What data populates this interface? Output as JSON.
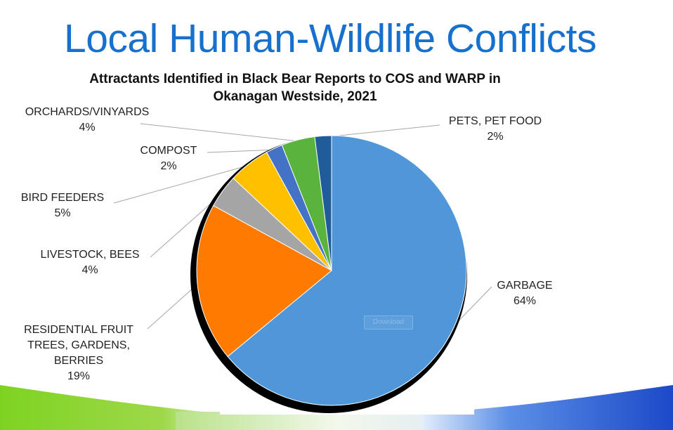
{
  "slide": {
    "title": "Local Human-Wildlife Conflicts"
  },
  "download_label": "Download",
  "chart_data": {
    "type": "pie",
    "title": "Attractants Identified in Black Bear Reports to COS and WARP in Okanagan Westside, 2021",
    "slices": [
      {
        "label": "GARBAGE",
        "value": 64,
        "pct_label": "64%",
        "color": "#4f97d9"
      },
      {
        "label": "RESIDENTIAL FRUIT TREES, GARDENS, BERRIES",
        "value": 19,
        "pct_label": "19%",
        "color": "#ff7a00"
      },
      {
        "label": "LIVESTOCK, BEES",
        "value": 4,
        "pct_label": "4%",
        "color": "#a5a5a5"
      },
      {
        "label": "BIRD FEEDERS",
        "value": 5,
        "pct_label": "5%",
        "color": "#ffc000"
      },
      {
        "label": "COMPOST",
        "value": 2,
        "pct_label": "2%",
        "color": "#4472c4"
      },
      {
        "label": "ORCHARDS/VINYARDS",
        "value": 4,
        "pct_label": "4%",
        "color": "#5ab33c"
      },
      {
        "label": "PETS, PET FOOD",
        "value": 2,
        "pct_label": "2%",
        "color": "#1f5c99"
      }
    ],
    "legend": "none"
  }
}
